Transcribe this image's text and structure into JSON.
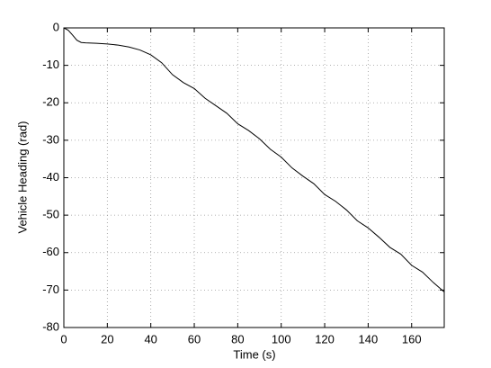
{
  "chart_data": {
    "type": "line",
    "x_label": "Time (s)",
    "y_label": "Vehicle Heading (rad)",
    "x": [
      0,
      2,
      4,
      6,
      8,
      10,
      15,
      20,
      25,
      30,
      35,
      40,
      45,
      50,
      55,
      60,
      65,
      70,
      75,
      80,
      85,
      90,
      95,
      100,
      105,
      110,
      115,
      120,
      125,
      130,
      135,
      140,
      145,
      150,
      155,
      160,
      165,
      170,
      175
    ],
    "series": [
      {
        "name": "Vehicle Heading",
        "color": "#000000",
        "values": [
          0,
          -0.6,
          -1.9,
          -3.3,
          -3.9,
          -4.0,
          -4.1,
          -4.3,
          -4.6,
          -5.1,
          -5.9,
          -7.2,
          -9.3,
          -12.5,
          -14.6,
          -16.2,
          -18.8,
          -20.8,
          -22.8,
          -25.6,
          -27.4,
          -29.6,
          -32.4,
          -34.5,
          -37.4,
          -39.6,
          -41.6,
          -44.5,
          -46.3,
          -48.6,
          -51.5,
          -53.4,
          -55.9,
          -58.6,
          -60.4,
          -63.4,
          -65.2,
          -68.0,
          -70.5
        ]
      }
    ],
    "xlim": [
      0,
      175
    ],
    "xticks": [
      0,
      20,
      40,
      60,
      80,
      100,
      120,
      140,
      160
    ],
    "ylim": [
      -80,
      0
    ],
    "yticks": [
      -80,
      -70,
      -60,
      -50,
      -40,
      -30,
      -20,
      -10,
      0
    ],
    "grid": true
  }
}
